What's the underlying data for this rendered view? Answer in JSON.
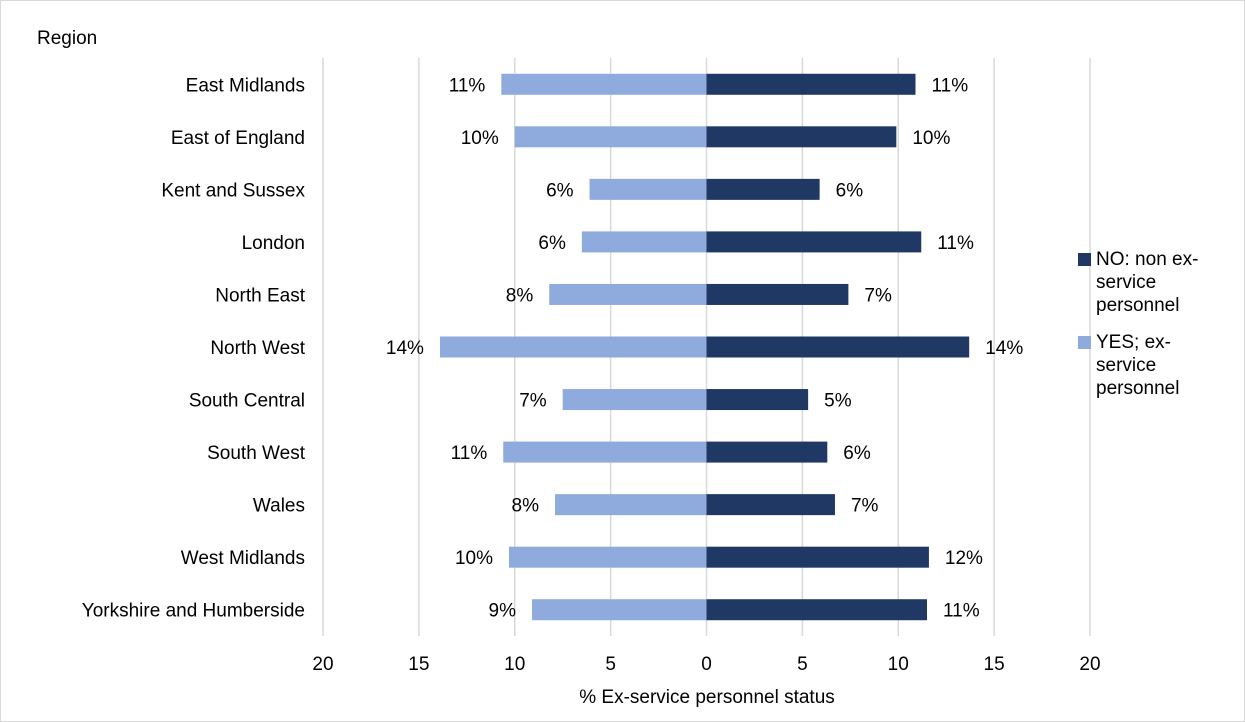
{
  "chart_data": {
    "type": "bar",
    "orientation": "horizontal-diverging",
    "axis_title_y": "Region",
    "xlabel": "% Ex-service personnel status",
    "xlim": [
      -20,
      20
    ],
    "x_ticks": [
      "20",
      "15",
      "10",
      "5",
      "0",
      "5",
      "10",
      "15",
      "20"
    ],
    "categories": [
      "East Midlands",
      "East of England",
      "Kent and Sussex",
      "London",
      "North East",
      "North West",
      "South Central",
      "South West",
      "Wales",
      "West Midlands",
      "Yorkshire and Humberside"
    ],
    "series": [
      {
        "name": "NO: non ex-service personnel",
        "color": "#203864",
        "direction": "right",
        "values": [
          10.9,
          9.9,
          5.9,
          11.2,
          7.4,
          13.7,
          5.3,
          6.3,
          6.7,
          11.6,
          11.5
        ],
        "labels": [
          "11%",
          "10%",
          "6%",
          "11%",
          "7%",
          "14%",
          "5%",
          "6%",
          "7%",
          "12%",
          "11%"
        ]
      },
      {
        "name": "YES; ex-service personnel",
        "color": "#8faadc",
        "direction": "left",
        "values": [
          10.7,
          10.0,
          6.1,
          6.5,
          8.2,
          13.9,
          7.5,
          10.6,
          7.9,
          10.3,
          9.1
        ],
        "labels": [
          "11%",
          "10%",
          "6%",
          "6%",
          "8%",
          "14%",
          "7%",
          "11%",
          "8%",
          "10%",
          "9%"
        ]
      }
    ],
    "grid": true,
    "legend_position": "right"
  }
}
